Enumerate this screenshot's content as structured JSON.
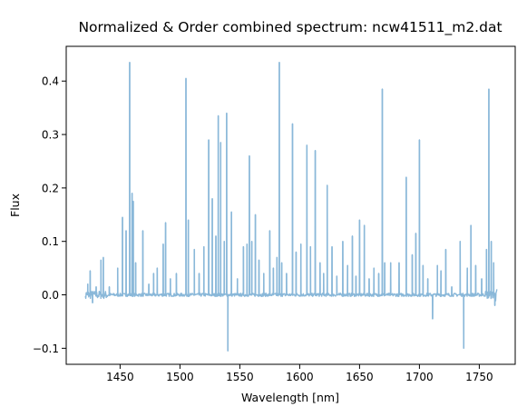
{
  "chart_data": {
    "type": "line",
    "title": "Normalized & Order combined spectrum: ncw41511_m2.dat",
    "xlabel": "Wavelength [nm]",
    "ylabel": "Flux",
    "xlim": [
      1405,
      1780
    ],
    "ylim": [
      -0.13,
      0.465
    ],
    "x_ticks": [
      1450,
      1500,
      1550,
      1600,
      1650,
      1700,
      1750
    ],
    "x_tick_labels": [
      "1450",
      "1500",
      "1550",
      "1600",
      "1650",
      "1700",
      "1750"
    ],
    "y_ticks": [
      -0.1,
      0.0,
      0.1,
      0.2,
      0.3,
      0.4
    ],
    "y_tick_labels": [
      "−0.1",
      "0.0",
      "0.1",
      "0.2",
      "0.3",
      "0.4"
    ],
    "grid": false,
    "legend": "none",
    "series": [
      {
        "color": "#8ab8d9",
        "x_range": [
          1421,
          1765
        ],
        "baseline": 0.0,
        "peaks": [
          {
            "x": 1423,
            "y": 0.02
          },
          {
            "x": 1425,
            "y": 0.045
          },
          {
            "x": 1427,
            "y": -0.015
          },
          {
            "x": 1430,
            "y": 0.015
          },
          {
            "x": 1434,
            "y": 0.065
          },
          {
            "x": 1436,
            "y": 0.07
          },
          {
            "x": 1441,
            "y": 0.015
          },
          {
            "x": 1448,
            "y": 0.05
          },
          {
            "x": 1452,
            "y": 0.145
          },
          {
            "x": 1455,
            "y": 0.12
          },
          {
            "x": 1458,
            "y": 0.435
          },
          {
            "x": 1460,
            "y": 0.19
          },
          {
            "x": 1461,
            "y": 0.175
          },
          {
            "x": 1463,
            "y": 0.06
          },
          {
            "x": 1469,
            "y": 0.12
          },
          {
            "x": 1474,
            "y": 0.02
          },
          {
            "x": 1478,
            "y": 0.04
          },
          {
            "x": 1481,
            "y": 0.05
          },
          {
            "x": 1486,
            "y": 0.095
          },
          {
            "x": 1488,
            "y": 0.135
          },
          {
            "x": 1492,
            "y": 0.03
          },
          {
            "x": 1497,
            "y": 0.04
          },
          {
            "x": 1505,
            "y": 0.405
          },
          {
            "x": 1507,
            "y": 0.14
          },
          {
            "x": 1512,
            "y": 0.085
          },
          {
            "x": 1516,
            "y": 0.04
          },
          {
            "x": 1520,
            "y": 0.09
          },
          {
            "x": 1524,
            "y": 0.29
          },
          {
            "x": 1527,
            "y": 0.18
          },
          {
            "x": 1530,
            "y": 0.11
          },
          {
            "x": 1532,
            "y": 0.335
          },
          {
            "x": 1534,
            "y": 0.285
          },
          {
            "x": 1537,
            "y": 0.1
          },
          {
            "x": 1539,
            "y": 0.34
          },
          {
            "x": 1540,
            "y": -0.105
          },
          {
            "x": 1543,
            "y": 0.155
          },
          {
            "x": 1548,
            "y": 0.03
          },
          {
            "x": 1553,
            "y": 0.09
          },
          {
            "x": 1556,
            "y": 0.095
          },
          {
            "x": 1558,
            "y": 0.26
          },
          {
            "x": 1560,
            "y": 0.1
          },
          {
            "x": 1563,
            "y": 0.15
          },
          {
            "x": 1566,
            "y": 0.065
          },
          {
            "x": 1570,
            "y": 0.04
          },
          {
            "x": 1575,
            "y": 0.12
          },
          {
            "x": 1578,
            "y": 0.05
          },
          {
            "x": 1581,
            "y": 0.07
          },
          {
            "x": 1583,
            "y": 0.435
          },
          {
            "x": 1585,
            "y": 0.06
          },
          {
            "x": 1589,
            "y": 0.04
          },
          {
            "x": 1594,
            "y": 0.32
          },
          {
            "x": 1597,
            "y": 0.08
          },
          {
            "x": 1601,
            "y": 0.095
          },
          {
            "x": 1606,
            "y": 0.28
          },
          {
            "x": 1609,
            "y": 0.09
          },
          {
            "x": 1613,
            "y": 0.27
          },
          {
            "x": 1617,
            "y": 0.06
          },
          {
            "x": 1620,
            "y": 0.04
          },
          {
            "x": 1623,
            "y": 0.205
          },
          {
            "x": 1627,
            "y": 0.09
          },
          {
            "x": 1631,
            "y": 0.035
          },
          {
            "x": 1636,
            "y": 0.1
          },
          {
            "x": 1640,
            "y": 0.055
          },
          {
            "x": 1644,
            "y": 0.11
          },
          {
            "x": 1647,
            "y": 0.035
          },
          {
            "x": 1650,
            "y": 0.14
          },
          {
            "x": 1654,
            "y": 0.13
          },
          {
            "x": 1658,
            "y": 0.03
          },
          {
            "x": 1662,
            "y": 0.05
          },
          {
            "x": 1666,
            "y": 0.04
          },
          {
            "x": 1669,
            "y": 0.385
          },
          {
            "x": 1671,
            "y": 0.06
          },
          {
            "x": 1676,
            "y": 0.06
          },
          {
            "x": 1683,
            "y": 0.06
          },
          {
            "x": 1689,
            "y": 0.22
          },
          {
            "x": 1694,
            "y": 0.075
          },
          {
            "x": 1697,
            "y": 0.115
          },
          {
            "x": 1700,
            "y": 0.29
          },
          {
            "x": 1703,
            "y": 0.055
          },
          {
            "x": 1707,
            "y": 0.03
          },
          {
            "x": 1711,
            "y": -0.045
          },
          {
            "x": 1715,
            "y": 0.055
          },
          {
            "x": 1718,
            "y": 0.045
          },
          {
            "x": 1722,
            "y": 0.085
          },
          {
            "x": 1727,
            "y": 0.015
          },
          {
            "x": 1734,
            "y": 0.1
          },
          {
            "x": 1737,
            "y": -0.1
          },
          {
            "x": 1740,
            "y": 0.05
          },
          {
            "x": 1743,
            "y": 0.13
          },
          {
            "x": 1747,
            "y": 0.055
          },
          {
            "x": 1752,
            "y": 0.03
          },
          {
            "x": 1756,
            "y": 0.085
          },
          {
            "x": 1758,
            "y": 0.385
          },
          {
            "x": 1760,
            "y": 0.1
          },
          {
            "x": 1762,
            "y": 0.06
          },
          {
            "x": 1763,
            "y": -0.02
          }
        ]
      }
    ]
  }
}
